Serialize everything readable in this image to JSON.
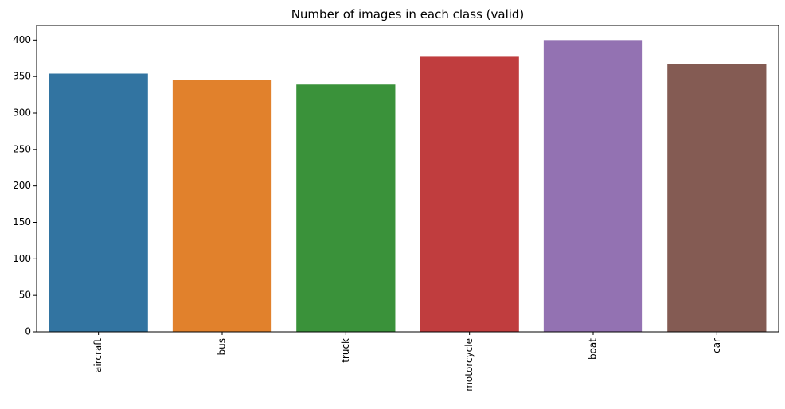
{
  "chart_data": {
    "type": "bar",
    "title": "Number of images in each class (valid)",
    "xlabel": "",
    "ylabel": "",
    "categories": [
      "aircraft",
      "bus",
      "truck",
      "motorcycle",
      "boat",
      "car"
    ],
    "values": [
      354,
      345,
      339,
      377,
      400,
      367
    ],
    "colors": [
      "#3274a1",
      "#e1812c",
      "#3a923a",
      "#c03d3e",
      "#9372b2",
      "#845b53"
    ],
    "ylim": [
      0,
      420
    ],
    "yticks": [
      0,
      50,
      100,
      150,
      200,
      250,
      300,
      350,
      400
    ],
    "grid": false,
    "x_tick_rotation": "vertical"
  }
}
